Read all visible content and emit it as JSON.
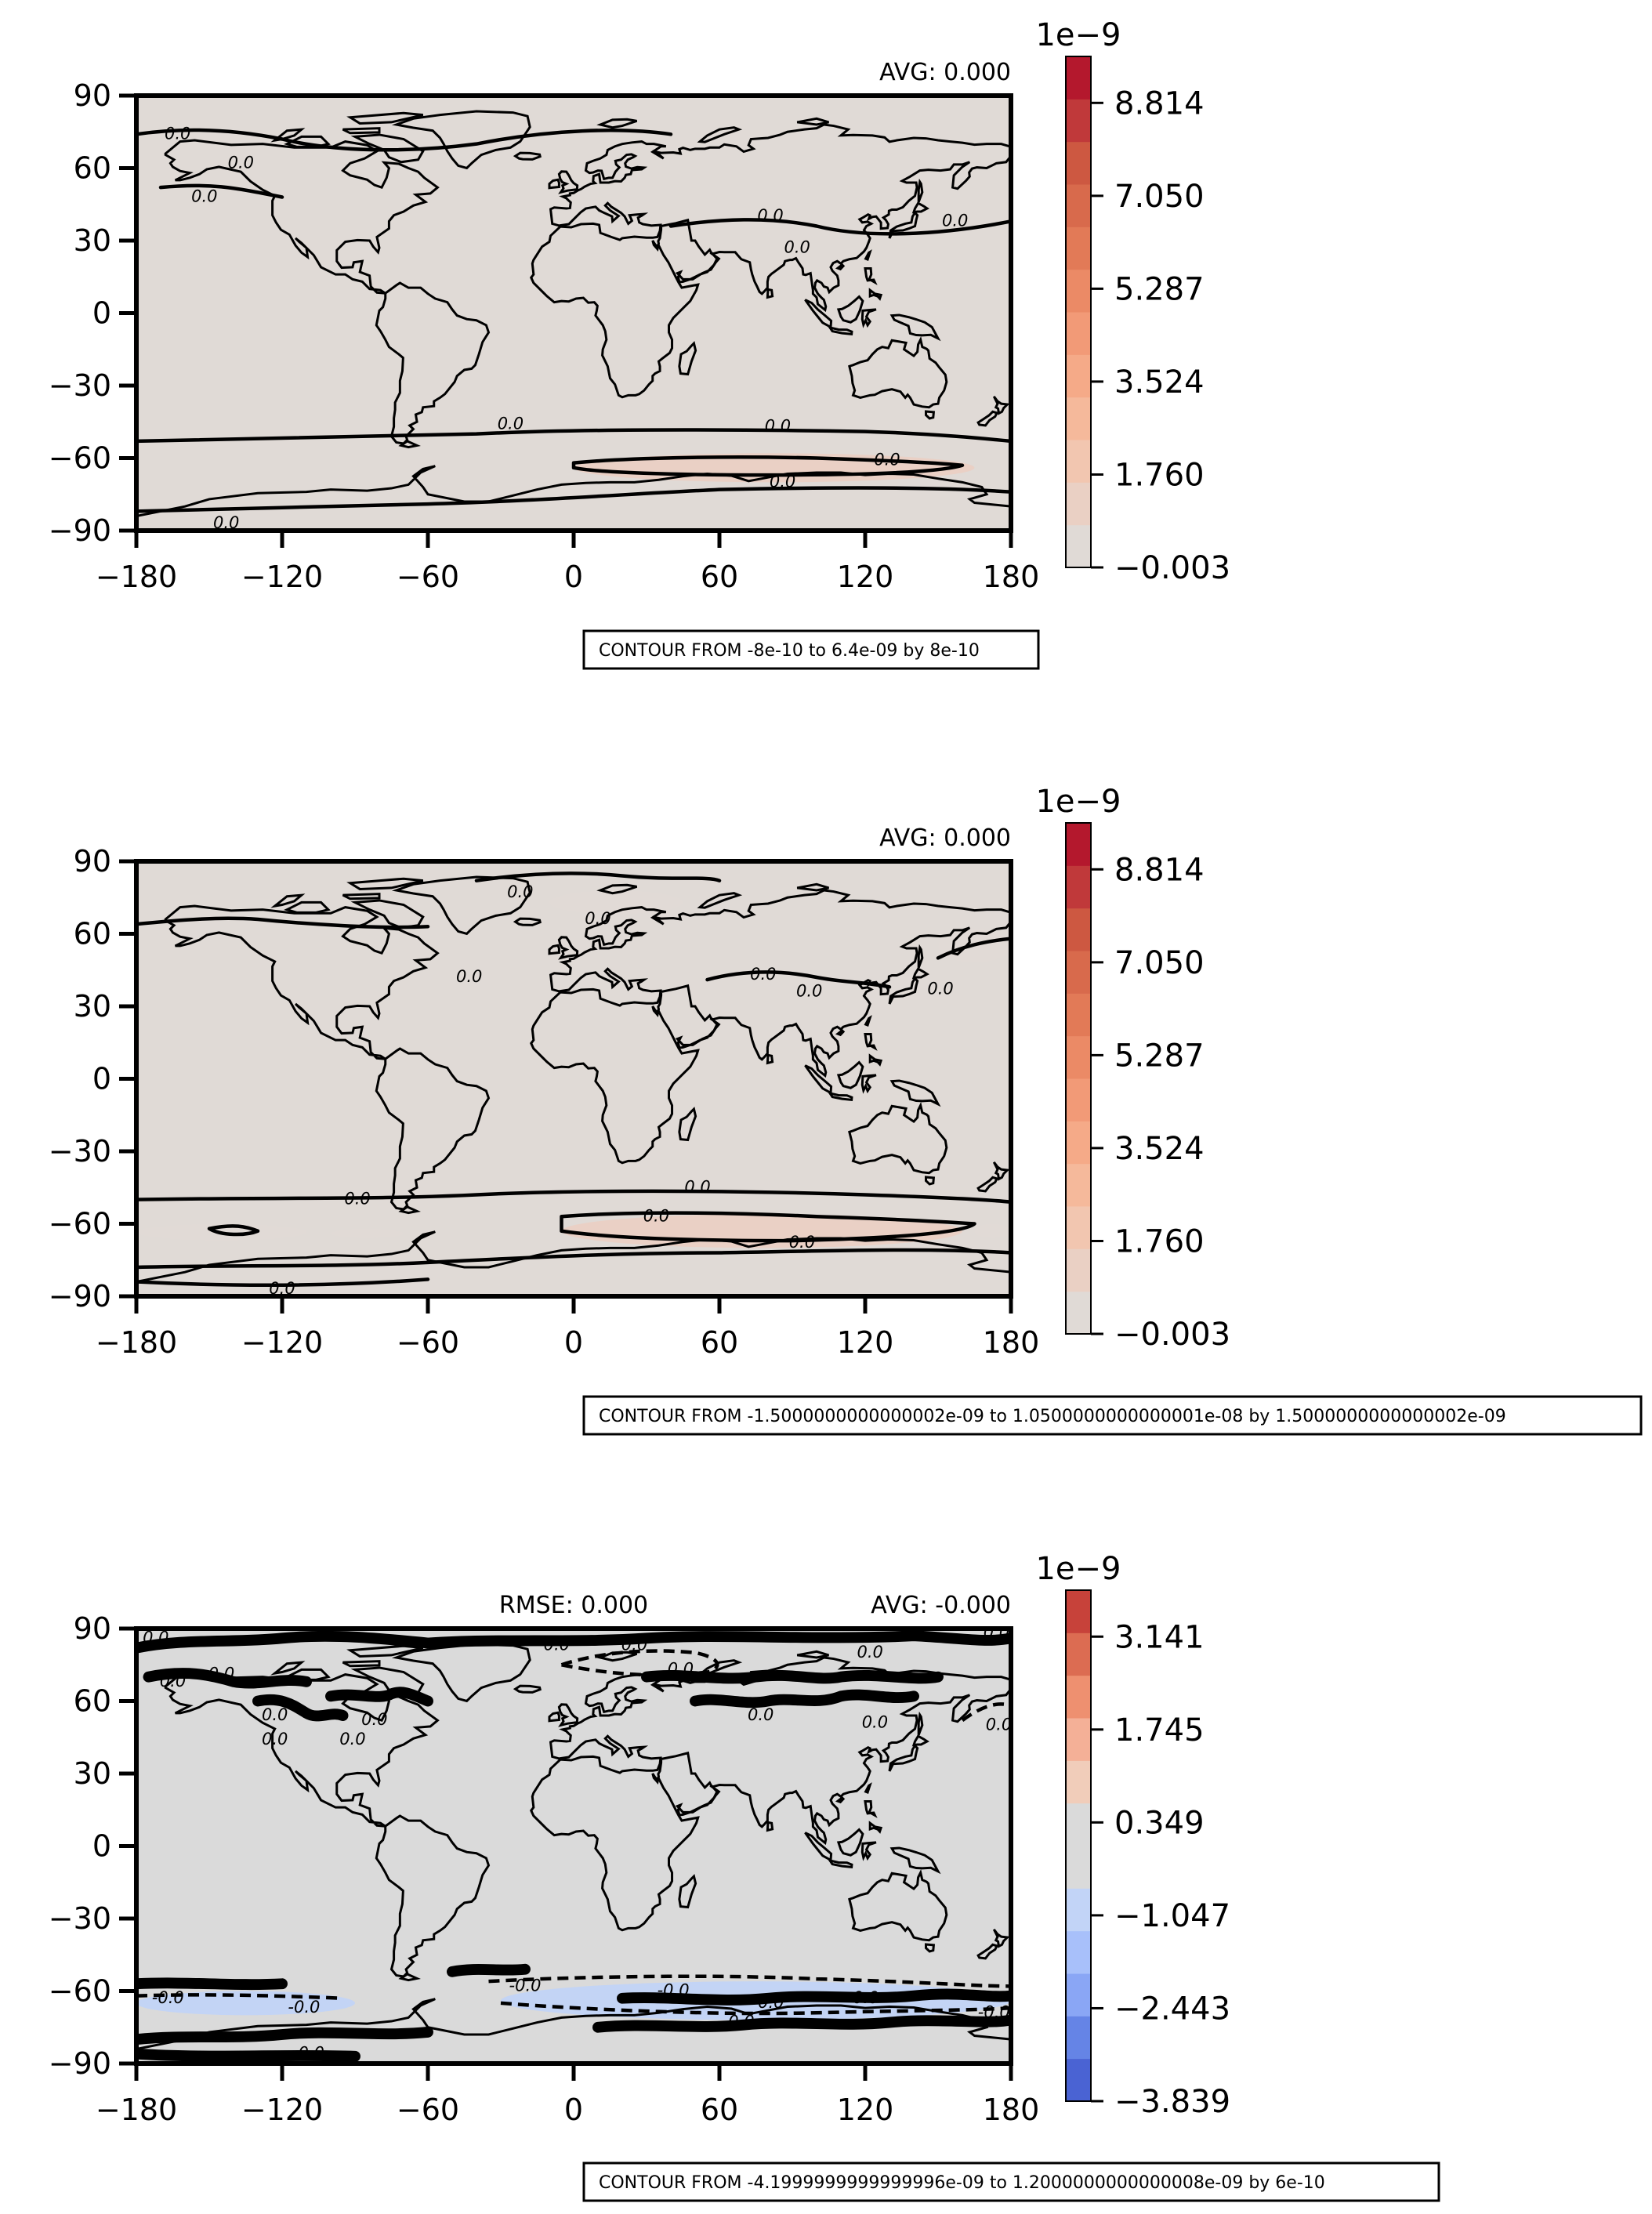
{
  "chart_data": [
    {
      "type": "heatmap",
      "x_ticks": [
        -180,
        -120,
        -60,
        0,
        60,
        120,
        180
      ],
      "y_ticks": [
        90,
        60,
        30,
        0,
        -30,
        -60,
        -90
      ],
      "xlim": [
        -180,
        180
      ],
      "ylim": [
        -90,
        90
      ],
      "stats": {
        "left": "",
        "right": "AVG: 0.000"
      },
      "colorbar": {
        "exponent": "1e−9",
        "range": [
          -0.003,
          9.696
        ],
        "tick_values": [
          -0.003,
          1.76,
          3.524,
          5.287,
          7.05,
          8.814
        ],
        "tick_labels": [
          "−0.003",
          "1.760",
          "3.524",
          "5.287",
          "7.050",
          "8.814"
        ],
        "colors": [
          "#e0dad6",
          "#ead0c4",
          "#f2c6b0",
          "#f5b99b",
          "#f5aa88",
          "#f29a77",
          "#eb8a66",
          "#e27a57",
          "#d86a4c",
          "#cd5841",
          "#c0393a",
          "#b4182d"
        ]
      },
      "regions": [
        {
          "lon": [
            0,
            165
          ],
          "lat": [
            -70,
            -58
          ],
          "level": 0.9
        }
      ],
      "contour_labels": [
        {
          "lon": -163,
          "lat": 74,
          "text": "0.0"
        },
        {
          "lon": -137,
          "lat": 62,
          "text": "0.0"
        },
        {
          "lon": -152,
          "lat": 48,
          "text": "0.0"
        },
        {
          "lon": 81,
          "lat": 40,
          "text": "0.0"
        },
        {
          "lon": 92,
          "lat": 27,
          "text": "0.0"
        },
        {
          "lon": 157,
          "lat": 38,
          "text": "0.0"
        },
        {
          "lon": -26,
          "lat": -46,
          "text": "0.0"
        },
        {
          "lon": 84,
          "lat": -47,
          "text": "0.0"
        },
        {
          "lon": 129,
          "lat": -61,
          "text": "0.0"
        },
        {
          "lon": 86,
          "lat": -70,
          "text": "0.0"
        },
        {
          "lon": -143,
          "lat": -87,
          "text": "0.0"
        }
      ],
      "note": "CONTOUR FROM -8e-10 to 6.4e-09 by 8e-10"
    },
    {
      "type": "heatmap",
      "x_ticks": [
        -180,
        -120,
        -60,
        0,
        60,
        120,
        180
      ],
      "y_ticks": [
        90,
        60,
        30,
        0,
        -30,
        -60,
        -90
      ],
      "xlim": [
        -180,
        180
      ],
      "ylim": [
        -90,
        90
      ],
      "stats": {
        "left": "",
        "right": "AVG: 0.000"
      },
      "colorbar": {
        "exponent": "1e−9",
        "range": [
          -0.003,
          9.696
        ],
        "tick_values": [
          -0.003,
          1.76,
          3.524,
          5.287,
          7.05,
          8.814
        ],
        "tick_labels": [
          "−0.003",
          "1.760",
          "3.524",
          "5.287",
          "7.050",
          "8.814"
        ],
        "colors": [
          "#e0dad6",
          "#ead0c4",
          "#f2c6b0",
          "#f5b99b",
          "#f5aa88",
          "#f29a77",
          "#eb8a66",
          "#e27a57",
          "#d86a4c",
          "#cd5841",
          "#c0393a",
          "#b4182d"
        ]
      },
      "regions": [
        {
          "lon": [
            -10,
            45
          ],
          "lat": [
            68,
            78
          ],
          "level": 0.6
        },
        {
          "lon": 100,
          "lat": [],
          "level": 0
        },
        {
          "lon": [
            -180,
            -110
          ],
          "lat": [
            -67,
            -60
          ],
          "level": 0.7
        },
        {
          "lon": [
            -100,
            -70
          ],
          "lat": [
            -66,
            -62
          ],
          "level": 0.5
        },
        {
          "lon": [
            -5,
            160
          ],
          "lat": [
            -70,
            -56
          ],
          "level": 1.3
        },
        {
          "lon": [
            165,
            180
          ],
          "lat": [
            -66,
            -60
          ],
          "level": 0.7
        },
        {
          "lon": [
            150,
            180
          ],
          "lat": [
            48,
            62
          ],
          "level": 0.4
        }
      ],
      "contour_labels": [
        {
          "lon": -22,
          "lat": 77,
          "text": "0.0"
        },
        {
          "lon": 10,
          "lat": 66,
          "text": "0.0"
        },
        {
          "lon": -43,
          "lat": 42,
          "text": "0.0"
        },
        {
          "lon": 78,
          "lat": 43,
          "text": "0.0"
        },
        {
          "lon": 97,
          "lat": 36,
          "text": "0.0"
        },
        {
          "lon": 151,
          "lat": 37,
          "text": "0.0"
        },
        {
          "lon": -89,
          "lat": -50,
          "text": "0.0"
        },
        {
          "lon": 51,
          "lat": -45,
          "text": "0.0"
        },
        {
          "lon": 34,
          "lat": -57,
          "text": "0.0"
        },
        {
          "lon": 94,
          "lat": -68,
          "text": "0.0"
        },
        {
          "lon": -120,
          "lat": -87,
          "text": "0.0"
        }
      ],
      "note": "CONTOUR FROM -1.5000000000000002e-09 to 1.0500000000000001e-08 by 1.5000000000000002e-09"
    },
    {
      "type": "heatmap",
      "x_ticks": [
        -180,
        -120,
        -60,
        0,
        60,
        120,
        180
      ],
      "y_ticks": [
        90,
        60,
        30,
        0,
        -30,
        -60,
        -90
      ],
      "xlim": [
        -180,
        180
      ],
      "ylim": [
        -90,
        90
      ],
      "stats": {
        "left": "RMSE: 0.000",
        "right": "AVG: -0.000"
      },
      "colorbar": {
        "exponent": "1e−9",
        "range": [
          -3.839,
          3.839
        ],
        "tick_values": [
          -3.839,
          -2.443,
          -1.047,
          0.349,
          1.745,
          3.141
        ],
        "tick_labels": [
          "−3.839",
          "−2.443",
          "−1.047",
          "0.349",
          "1.745",
          "3.141"
        ],
        "colors": [
          "#4a63d3",
          "#6584e6",
          "#8aa6f5",
          "#a8c0fa",
          "#c2d4f7",
          "#dadada",
          "#dadada",
          "#f1cdba",
          "#f4b097",
          "#ee9070",
          "#dc6c52",
          "#c7423a"
        ]
      },
      "regions": [
        {
          "lon": [
            -180,
            -170
          ],
          "lat": [
            50,
            62
          ],
          "level": -0.5
        },
        {
          "lon": [
            -10,
            60
          ],
          "lat": [
            68,
            80
          ],
          "level": -0.6
        },
        {
          "lon": [
            160,
            180
          ],
          "lat": [
            48,
            62
          ],
          "level": -0.6
        },
        {
          "lon": [
            -180,
            -90
          ],
          "lat": [
            -70,
            -60
          ],
          "level": -0.7
        },
        {
          "lon": [
            -30,
            180
          ],
          "lat": [
            -72,
            -56
          ],
          "level": -0.8
        }
      ],
      "contour_labels": [
        {
          "lon": -172,
          "lat": 86,
          "text": "0.0"
        },
        {
          "lon": -145,
          "lat": 71,
          "text": "0.0"
        },
        {
          "lon": -165,
          "lat": 68,
          "text": "0.0"
        },
        {
          "lon": -123,
          "lat": 54,
          "text": "0.0"
        },
        {
          "lon": -82,
          "lat": 52,
          "text": "0.0"
        },
        {
          "lon": -91,
          "lat": 44,
          "text": "0.0"
        },
        {
          "lon": -123,
          "lat": 44,
          "text": "0.0"
        },
        {
          "lon": -7,
          "lat": 83,
          "text": "0.0"
        },
        {
          "lon": 25,
          "lat": 83,
          "text": "0.0"
        },
        {
          "lon": 44,
          "lat": 73,
          "text": "0.0"
        },
        {
          "lon": 77,
          "lat": 54,
          "text": "0.0"
        },
        {
          "lon": 122,
          "lat": 80,
          "text": "0.0"
        },
        {
          "lon": 124,
          "lat": 51,
          "text": "0.0"
        },
        {
          "lon": 174,
          "lat": 88,
          "text": "0.0"
        },
        {
          "lon": 175,
          "lat": 50,
          "text": "0.0"
        },
        {
          "lon": -167,
          "lat": -63,
          "text": "-0.0"
        },
        {
          "lon": -111,
          "lat": -67,
          "text": "-0.0"
        },
        {
          "lon": -20,
          "lat": -58,
          "text": "-0.0"
        },
        {
          "lon": 41,
          "lat": -60,
          "text": "-0.0"
        },
        {
          "lon": 80,
          "lat": -65,
          "text": "-0.0"
        },
        {
          "lon": 69,
          "lat": -73,
          "text": "0.0"
        },
        {
          "lon": 119,
          "lat": -63,
          "text": "-0.0"
        },
        {
          "lon": 173,
          "lat": -69,
          "text": "-0.0"
        },
        {
          "lon": -108,
          "lat": -86,
          "text": "0.0"
        }
      ],
      "note": "CONTOUR FROM -4.1999999999999996e-09 to 1.2000000000000008e-09 by 6e-10"
    }
  ]
}
